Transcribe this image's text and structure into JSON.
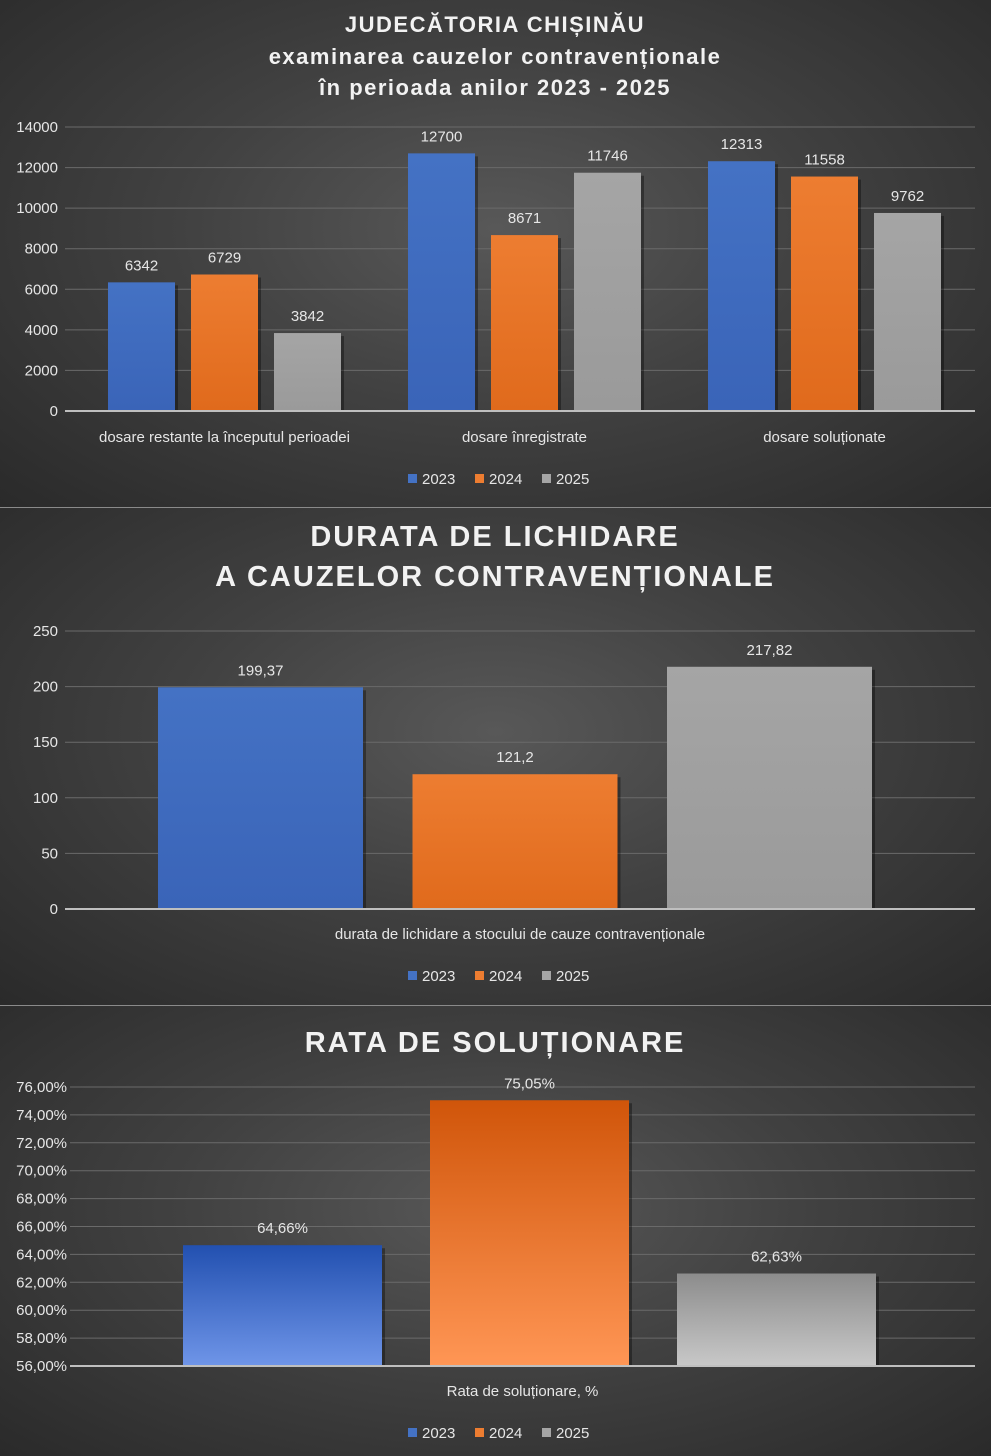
{
  "colors": {
    "2023": "#4472c4",
    "2024": "#ed7d31",
    "2025": "#a5a5a5",
    "text": "#e6e6e6",
    "grid": "#6a6a6a"
  },
  "chart_data": [
    {
      "type": "bar",
      "title": [
        "JUDECĂTORIA CHIȘINĂU",
        "examinarea cauzelor contravenționale",
        "în perioada anilor 2023 - 2025"
      ],
      "categories": [
        "dosare restante la începutul perioadei",
        "dosare înregistrate",
        "dosare soluționate"
      ],
      "series": [
        {
          "name": "2023",
          "values": [
            6342,
            12700,
            12313
          ],
          "labels": [
            "6342",
            "12700",
            "12313"
          ]
        },
        {
          "name": "2024",
          "values": [
            6729,
            8671,
            11558
          ],
          "labels": [
            "6729",
            "8671",
            "11558"
          ]
        },
        {
          "name": "2025",
          "values": [
            3842,
            11746,
            9762
          ],
          "labels": [
            "3842",
            "11746",
            "9762"
          ]
        }
      ],
      "ylim": [
        0,
        14000
      ],
      "yticks": [
        "0",
        "2000",
        "4000",
        "6000",
        "8000",
        "10000",
        "12000",
        "14000"
      ],
      "xlabel": "",
      "ylabel": "",
      "grid": true,
      "legend": "bottom-center"
    },
    {
      "type": "bar",
      "title": [
        "DURATA DE LICHIDARE",
        "A CAUZELOR CONTRAVENȚIONALE"
      ],
      "categories": [
        "durata de lichidare a stocului de cauze contravenționale"
      ],
      "series": [
        {
          "name": "2023",
          "values": [
            199.37
          ],
          "labels": [
            "199,37"
          ]
        },
        {
          "name": "2024",
          "values": [
            121.2
          ],
          "labels": [
            "121,2"
          ]
        },
        {
          "name": "2025",
          "values": [
            217.82
          ],
          "labels": [
            "217,82"
          ]
        }
      ],
      "ylim": [
        0,
        250
      ],
      "yticks": [
        "0",
        "50",
        "100",
        "150",
        "200",
        "250"
      ],
      "xlabel": "",
      "ylabel": "",
      "grid": true,
      "legend": "bottom-center"
    },
    {
      "type": "bar",
      "title": [
        "RATA DE SOLUȚIONARE"
      ],
      "categories": [
        "Rata de soluționare, %"
      ],
      "series": [
        {
          "name": "2023",
          "values": [
            64.66
          ],
          "labels": [
            "64,66%"
          ]
        },
        {
          "name": "2024",
          "values": [
            75.05
          ],
          "labels": [
            "75,05%"
          ]
        },
        {
          "name": "2025",
          "values": [
            62.63
          ],
          "labels": [
            "62,63%"
          ]
        }
      ],
      "ylim": [
        56,
        76
      ],
      "yticks": [
        "56,00%",
        "58,00%",
        "60,00%",
        "62,00%",
        "64,00%",
        "66,00%",
        "68,00%",
        "70,00%",
        "72,00%",
        "74,00%",
        "76,00%"
      ],
      "xlabel": "",
      "ylabel": "",
      "grid": true,
      "legend": "bottom-center"
    }
  ]
}
